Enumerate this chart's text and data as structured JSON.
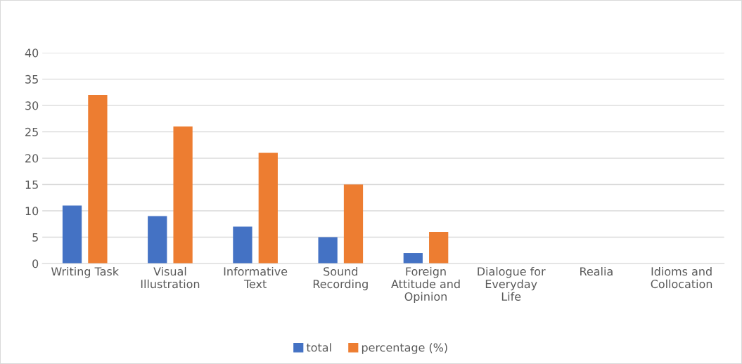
{
  "chart_data": {
    "type": "bar",
    "categories": [
      "Writing Task",
      "Visual Illustration",
      "Informative Text",
      "Sound Recording",
      "Foreign Attitude and Opinion",
      "Dialogue for Everyday Life",
      "Realia",
      "Idioms and Collocation"
    ],
    "series": [
      {
        "name": "total",
        "color": "#4472c4",
        "values": [
          11,
          9,
          7,
          5,
          2,
          0,
          0,
          0
        ]
      },
      {
        "name": "percentage (%)",
        "color": "#ed7d31",
        "values": [
          32,
          26,
          21,
          15,
          6,
          0,
          0,
          0
        ]
      }
    ],
    "ylim": [
      0,
      40
    ],
    "yticks": [
      0,
      5,
      10,
      15,
      20,
      25,
      30,
      35,
      40
    ],
    "grid": "y",
    "legend": "bottom"
  }
}
